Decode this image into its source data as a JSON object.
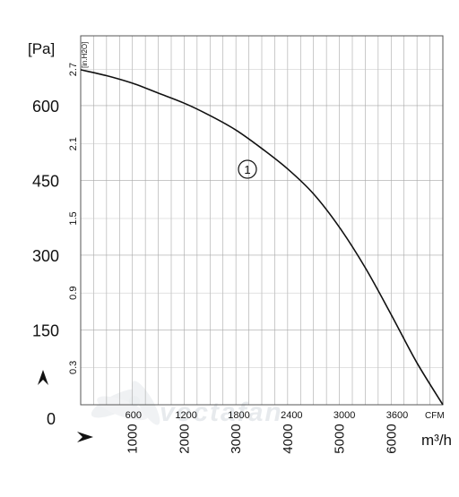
{
  "chart_data": {
    "type": "line",
    "title": "",
    "colors": {
      "curve": "#111111",
      "grid": "#9a9a9a",
      "watermark": "#cfd6de"
    },
    "y_unit_left": "[Pa]",
    "y_unit_right": "[in.H2O]",
    "y_ticks_pa": [
      "0",
      "150",
      "300",
      "450",
      "600"
    ],
    "y_ticks_pa_values": [
      0,
      150,
      300,
      450,
      600
    ],
    "y_ticks_inh2o": [
      "0.3",
      "0.9",
      "1.5",
      "2.1",
      "2.7"
    ],
    "y_ticks_inh2o_values": [
      0.3,
      0.9,
      1.5,
      2.1,
      2.7
    ],
    "ylim_pa": [
      0,
      740
    ],
    "x_unit_cfm": "CFM",
    "x_unit_m3h": "m³/h",
    "x_ticks_cfm": [
      "600",
      "1200",
      "1800",
      "2400",
      "3000",
      "3600"
    ],
    "x_ticks_cfm_values": [
      600,
      1200,
      1800,
      2400,
      3000,
      3600
    ],
    "x_ticks_m3h": [
      "1000",
      "2000",
      "3000",
      "4000",
      "5000",
      "6000"
    ],
    "x_ticks_m3h_values": [
      1000,
      2000,
      3000,
      4000,
      5000,
      6000
    ],
    "xlim_m3h": [
      0,
      7000
    ],
    "watermark": "vectafan",
    "series": [
      {
        "name": "①",
        "x_m3h": [
          0,
          500,
          1000,
          1500,
          2000,
          2500,
          3000,
          3500,
          4000,
          4500,
          5000,
          5500,
          6000,
          6500,
          7000
        ],
        "y_pa": [
          672,
          660,
          645,
          625,
          605,
          580,
          551,
          514,
          473,
          423,
          356,
          275,
          181,
          84,
          0
        ]
      }
    ]
  }
}
